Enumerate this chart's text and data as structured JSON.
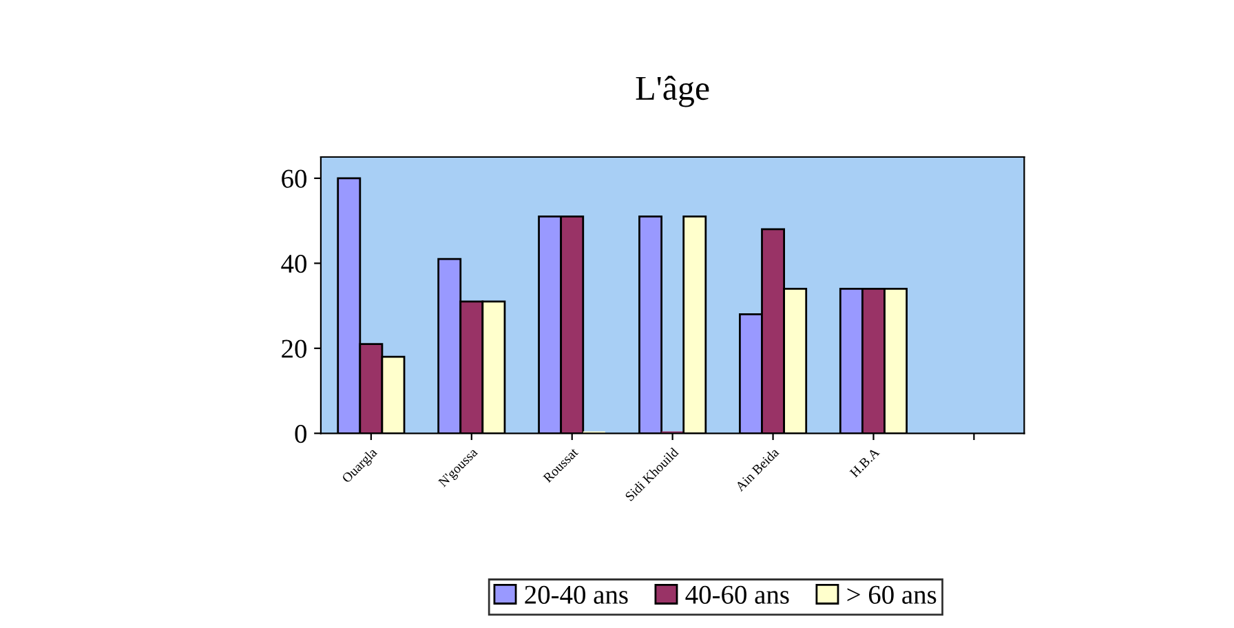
{
  "chart_data": {
    "type": "bar",
    "title": "L'âge",
    "categories": [
      "Ouargla",
      "N'goussa",
      "Roussat",
      "Sidi Khouild",
      "Ain Beida",
      "H.B.A",
      null
    ],
    "series": [
      {
        "name": "20-40 ans",
        "color": "#9999ff",
        "values": [
          60,
          41,
          51,
          51,
          28,
          34,
          null
        ]
      },
      {
        "name": "40-60 ans",
        "color": "#993366",
        "values": [
          21,
          31,
          51,
          0,
          48,
          34,
          null
        ]
      },
      {
        "name": "> 60 ans",
        "color": "#ffffcc",
        "values": [
          18,
          31,
          0,
          51,
          34,
          34,
          null
        ]
      }
    ],
    "ylim": [
      0,
      65
    ],
    "yticks": [
      0,
      20,
      40,
      60
    ],
    "grid": false,
    "legend": "bottom"
  }
}
